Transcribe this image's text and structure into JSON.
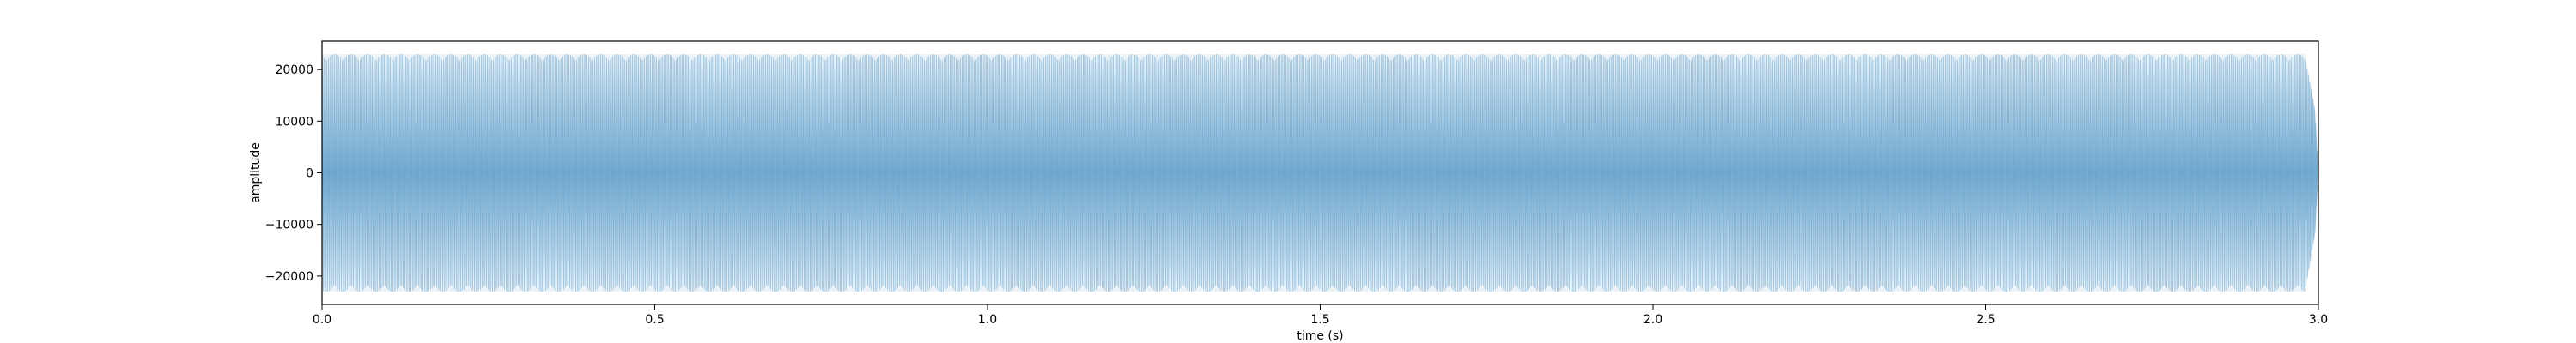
{
  "chart_data": {
    "type": "line",
    "title": "",
    "xlabel": "time (s)",
    "ylabel": "amplitude",
    "xlim": [
      0.0,
      3.0
    ],
    "ylim": [
      -25500,
      25500
    ],
    "xticks": [
      0.0,
      0.5,
      1.0,
      1.5,
      2.0,
      2.5,
      3.0
    ],
    "xtick_labels": [
      "0.0",
      "0.5",
      "1.0",
      "1.5",
      "2.0",
      "2.5",
      "3.0"
    ],
    "yticks": [
      -20000,
      -10000,
      0,
      10000,
      20000
    ],
    "ytick_labels": [
      "−20000",
      "−10000",
      "0",
      "10000",
      "20000"
    ],
    "grid": false,
    "series": [
      {
        "description": "dense sine-like waveform filling the axes; envelope amplitude ~23000 from t=0 to ~2.99 s, tapering to 0 at t=3.0",
        "color": "#1f77b4",
        "alpha": 0.35,
        "envelope": {
          "t": [
            0.0,
            2.98,
            2.995,
            3.0
          ],
          "amp": [
            23000,
            23000,
            12000,
            0
          ]
        },
        "frequency_hz": 440
      }
    ]
  }
}
